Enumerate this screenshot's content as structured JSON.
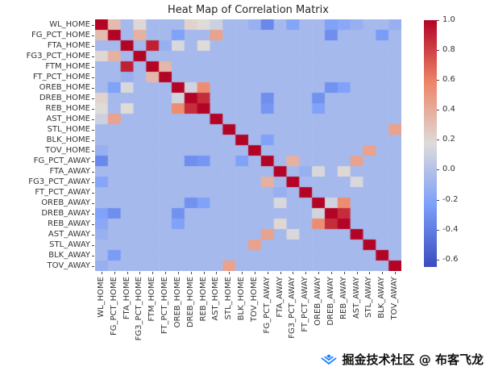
{
  "title": "Heat Map of Correlation Matrix",
  "watermark": {
    "text": "掘金技术社区 @ 布客飞龙",
    "logo": "juejin-gem-icon",
    "logo_color": "#1e80ff"
  },
  "chart_data": {
    "type": "heatmap",
    "title": "Heat Map of Correlation Matrix",
    "xlabel": "",
    "ylabel": "",
    "colormap": "coolwarm",
    "vmin": -0.65,
    "vmax": 1.0,
    "grid": false,
    "legend_position": "colorbar-right",
    "colorbar_tick_labels": [
      "1.0",
      "0.8",
      "0.6",
      "0.4",
      "0.2",
      "0.0",
      "-0.2",
      "-0.4",
      "-0.6"
    ],
    "labels": [
      "WL_HOME",
      "FG_PCT_HOME",
      "FTA_HOME",
      "FG3_PCT_HOME",
      "FTM_HOME",
      "FT_PCT_HOME",
      "OREB_HOME",
      "DREB_HOME",
      "REB_HOME",
      "AST_HOME",
      "STL_HOME",
      "BLK_HOME",
      "TOV_HOME",
      "FG_PCT_AWAY",
      "FTA_AWAY",
      "FG3_PCT_AWAY",
      "FT_PCT_AWAY",
      "OREB_AWAY",
      "DREB_AWAY",
      "REB_AWAY",
      "AST_AWAY",
      "STL_AWAY",
      "BLK_AWAY",
      "TOV_AWAY"
    ],
    "matrix": [
      [
        1.0,
        0.33,
        -0.06,
        0.2,
        -0.06,
        -0.06,
        -0.06,
        0.22,
        0.18,
        0.1,
        -0.06,
        -0.06,
        -0.12,
        -0.35,
        -0.06,
        -0.2,
        -0.06,
        -0.06,
        -0.22,
        -0.18,
        -0.12,
        -0.06,
        -0.06,
        -0.12
      ],
      [
        0.33,
        1.0,
        -0.06,
        0.38,
        -0.06,
        -0.06,
        -0.22,
        -0.06,
        -0.06,
        0.45,
        -0.06,
        -0.06,
        -0.06,
        -0.06,
        -0.06,
        -0.06,
        -0.06,
        -0.06,
        -0.32,
        -0.06,
        -0.06,
        -0.06,
        -0.25,
        -0.06
      ],
      [
        -0.06,
        -0.06,
        1.0,
        -0.06,
        0.91,
        -0.12,
        0.15,
        -0.06,
        0.18,
        -0.06,
        -0.06,
        -0.06,
        -0.06,
        -0.06,
        -0.06,
        -0.06,
        -0.06,
        -0.06,
        -0.06,
        -0.06,
        -0.06,
        -0.06,
        -0.06,
        -0.06
      ],
      [
        0.2,
        0.38,
        -0.06,
        1.0,
        -0.06,
        -0.06,
        -0.06,
        -0.06,
        -0.06,
        -0.06,
        -0.06,
        -0.06,
        -0.06,
        -0.06,
        -0.06,
        -0.06,
        -0.06,
        -0.06,
        -0.06,
        -0.06,
        -0.06,
        -0.06,
        -0.06,
        -0.06
      ],
      [
        -0.06,
        -0.06,
        0.91,
        -0.06,
        1.0,
        0.35,
        -0.06,
        -0.06,
        -0.06,
        -0.06,
        -0.06,
        -0.06,
        -0.06,
        -0.06,
        -0.06,
        -0.06,
        -0.06,
        -0.06,
        -0.06,
        -0.06,
        -0.06,
        -0.06,
        -0.06,
        -0.06
      ],
      [
        -0.06,
        -0.06,
        -0.12,
        -0.06,
        0.35,
        1.0,
        -0.06,
        -0.06,
        -0.06,
        -0.06,
        -0.06,
        -0.06,
        -0.06,
        -0.06,
        -0.06,
        -0.06,
        -0.06,
        -0.06,
        -0.06,
        -0.06,
        -0.06,
        -0.06,
        -0.06,
        -0.06
      ],
      [
        -0.06,
        -0.22,
        0.15,
        -0.06,
        -0.06,
        -0.06,
        1.0,
        0.12,
        0.55,
        -0.06,
        -0.06,
        -0.06,
        -0.06,
        -0.06,
        -0.06,
        -0.06,
        -0.06,
        -0.06,
        -0.3,
        -0.22,
        -0.06,
        -0.06,
        -0.06,
        -0.06
      ],
      [
        0.22,
        -0.06,
        -0.06,
        -0.06,
        -0.06,
        -0.06,
        0.12,
        1.0,
        0.87,
        -0.06,
        -0.06,
        -0.06,
        -0.06,
        -0.32,
        -0.06,
        -0.06,
        -0.06,
        -0.3,
        -0.06,
        -0.06,
        -0.06,
        -0.06,
        -0.06,
        -0.06
      ],
      [
        0.18,
        -0.06,
        0.18,
        -0.06,
        -0.06,
        -0.06,
        0.55,
        0.87,
        1.0,
        -0.06,
        -0.06,
        -0.06,
        -0.06,
        -0.28,
        -0.06,
        -0.06,
        -0.06,
        -0.22,
        -0.06,
        -0.06,
        -0.06,
        -0.06,
        -0.06,
        -0.06
      ],
      [
        0.1,
        0.45,
        -0.06,
        -0.06,
        -0.06,
        -0.06,
        -0.06,
        -0.06,
        -0.06,
        1.0,
        -0.06,
        -0.06,
        -0.06,
        -0.06,
        -0.06,
        -0.06,
        -0.06,
        -0.06,
        -0.06,
        -0.06,
        -0.06,
        -0.06,
        -0.06,
        -0.06
      ],
      [
        -0.06,
        -0.06,
        -0.06,
        -0.06,
        -0.06,
        -0.06,
        -0.06,
        -0.06,
        -0.06,
        -0.06,
        1.0,
        -0.06,
        -0.06,
        -0.06,
        -0.06,
        -0.06,
        -0.06,
        -0.06,
        -0.06,
        -0.06,
        -0.06,
        -0.06,
        -0.06,
        0.45
      ],
      [
        -0.06,
        -0.06,
        -0.06,
        -0.06,
        -0.06,
        -0.06,
        -0.06,
        -0.06,
        -0.06,
        -0.06,
        -0.06,
        1.0,
        -0.06,
        -0.22,
        -0.06,
        -0.06,
        -0.06,
        -0.06,
        -0.06,
        -0.06,
        -0.06,
        -0.06,
        -0.06,
        -0.06
      ],
      [
        -0.12,
        -0.06,
        -0.06,
        -0.06,
        -0.06,
        -0.06,
        -0.06,
        -0.06,
        -0.06,
        -0.06,
        -0.06,
        -0.06,
        1.0,
        -0.06,
        -0.06,
        -0.06,
        -0.06,
        -0.06,
        -0.06,
        -0.06,
        -0.06,
        0.45,
        -0.06,
        -0.06
      ],
      [
        -0.35,
        -0.06,
        -0.06,
        -0.06,
        -0.06,
        -0.06,
        -0.06,
        -0.32,
        -0.28,
        -0.06,
        -0.06,
        -0.22,
        -0.06,
        1.0,
        -0.06,
        0.38,
        -0.06,
        -0.06,
        -0.06,
        -0.06,
        0.45,
        -0.06,
        -0.06,
        -0.06
      ],
      [
        -0.06,
        -0.06,
        -0.06,
        -0.06,
        -0.06,
        -0.06,
        -0.06,
        -0.06,
        -0.06,
        -0.06,
        -0.06,
        -0.06,
        -0.06,
        -0.06,
        1.0,
        -0.06,
        -0.12,
        0.15,
        -0.06,
        0.2,
        -0.06,
        -0.06,
        -0.06,
        -0.06
      ],
      [
        -0.2,
        -0.06,
        -0.06,
        -0.06,
        -0.06,
        -0.06,
        -0.06,
        -0.06,
        -0.06,
        -0.06,
        -0.06,
        -0.06,
        -0.06,
        0.38,
        -0.06,
        1.0,
        -0.06,
        -0.06,
        -0.06,
        -0.06,
        0.15,
        -0.06,
        -0.06,
        -0.06
      ],
      [
        -0.06,
        -0.06,
        -0.06,
        -0.06,
        -0.06,
        -0.06,
        -0.06,
        -0.06,
        -0.06,
        -0.06,
        -0.06,
        -0.06,
        -0.06,
        -0.06,
        -0.12,
        -0.06,
        1.0,
        -0.06,
        -0.06,
        -0.06,
        -0.06,
        -0.06,
        -0.06,
        -0.06
      ],
      [
        -0.06,
        -0.06,
        -0.06,
        -0.06,
        -0.06,
        -0.06,
        -0.06,
        -0.3,
        -0.22,
        -0.06,
        -0.06,
        -0.06,
        -0.06,
        -0.06,
        0.15,
        -0.06,
        -0.06,
        1.0,
        0.12,
        0.55,
        -0.06,
        -0.06,
        -0.06,
        -0.06
      ],
      [
        -0.22,
        -0.32,
        -0.06,
        -0.06,
        -0.06,
        -0.06,
        -0.3,
        -0.06,
        -0.06,
        -0.06,
        -0.06,
        -0.06,
        -0.06,
        -0.06,
        -0.06,
        -0.06,
        -0.06,
        0.12,
        1.0,
        0.87,
        -0.06,
        -0.06,
        -0.06,
        -0.06
      ],
      [
        -0.18,
        -0.06,
        -0.06,
        -0.06,
        -0.06,
        -0.06,
        -0.22,
        -0.06,
        -0.06,
        -0.06,
        -0.06,
        -0.06,
        -0.06,
        -0.06,
        0.2,
        -0.06,
        -0.06,
        0.55,
        0.87,
        1.0,
        -0.06,
        -0.06,
        -0.06,
        -0.06
      ],
      [
        -0.12,
        -0.06,
        -0.06,
        -0.06,
        -0.06,
        -0.06,
        -0.06,
        -0.06,
        -0.06,
        -0.06,
        -0.06,
        -0.06,
        -0.06,
        0.45,
        -0.06,
        0.15,
        -0.06,
        -0.06,
        -0.06,
        -0.06,
        1.0,
        -0.06,
        -0.06,
        -0.06
      ],
      [
        -0.06,
        -0.06,
        -0.06,
        -0.06,
        -0.06,
        -0.06,
        -0.06,
        -0.06,
        -0.06,
        -0.06,
        -0.06,
        -0.06,
        0.45,
        -0.06,
        -0.06,
        -0.06,
        -0.06,
        -0.06,
        -0.06,
        -0.06,
        -0.06,
        1.0,
        -0.06,
        -0.06
      ],
      [
        -0.06,
        -0.25,
        -0.06,
        -0.06,
        -0.06,
        -0.06,
        -0.06,
        -0.06,
        -0.06,
        -0.06,
        -0.06,
        -0.06,
        -0.06,
        -0.06,
        -0.06,
        -0.06,
        -0.06,
        -0.06,
        -0.06,
        -0.06,
        -0.06,
        -0.06,
        1.0,
        -0.06
      ],
      [
        -0.12,
        -0.06,
        -0.06,
        -0.06,
        -0.06,
        -0.06,
        -0.06,
        -0.06,
        -0.06,
        -0.06,
        0.45,
        -0.06,
        -0.06,
        -0.06,
        -0.06,
        -0.06,
        -0.06,
        -0.06,
        -0.06,
        -0.06,
        -0.06,
        -0.06,
        -0.06,
        1.0
      ]
    ]
  }
}
